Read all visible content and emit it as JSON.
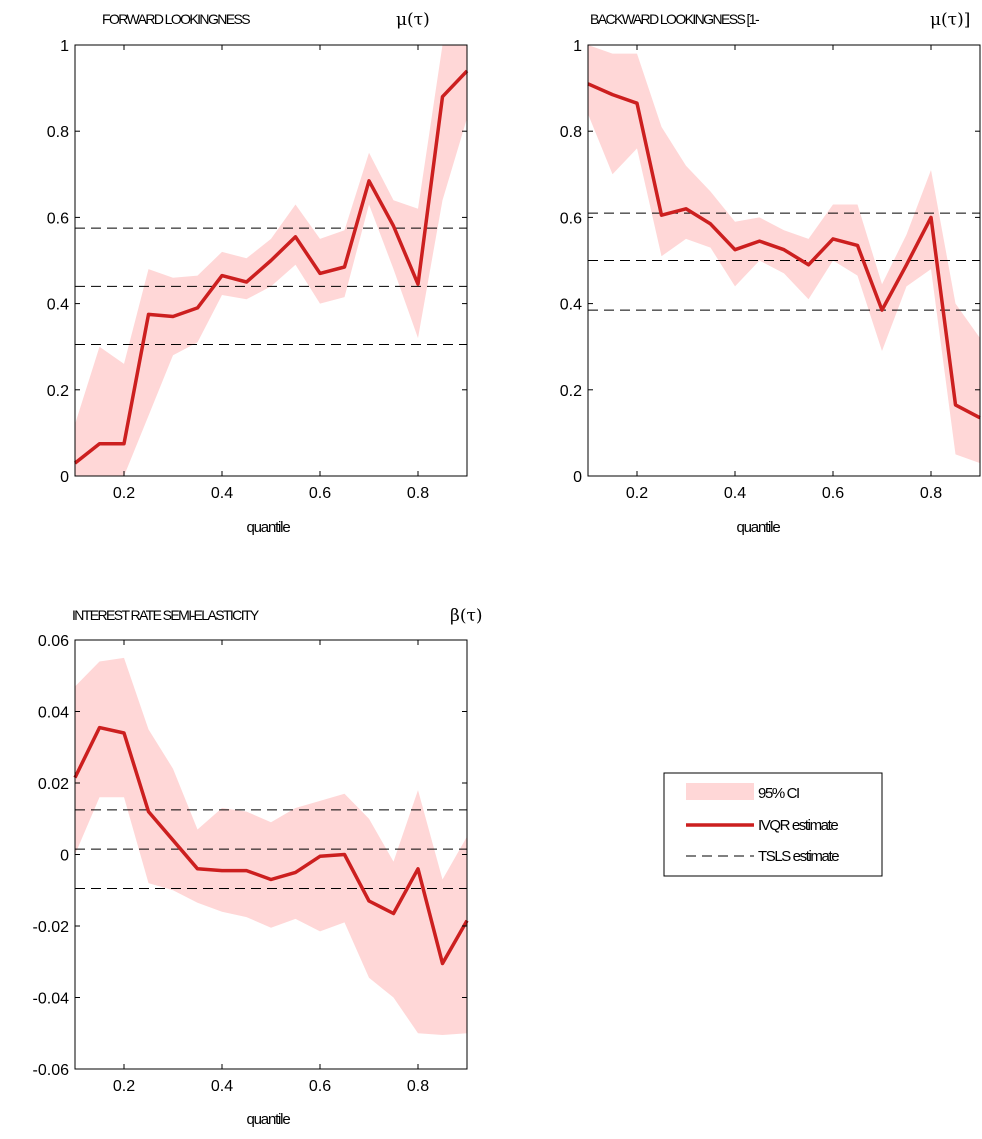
{
  "chart_data": [
    {
      "type": "line",
      "title": "FORWARD LOOKINGNESS",
      "symbol": "μ(τ)",
      "xlabel": "quantile",
      "xlim": [
        0.1,
        0.9
      ],
      "ylim": [
        0,
        1
      ],
      "xticks": [
        {
          "v": 0.2,
          "label": "0.2"
        },
        {
          "v": 0.4,
          "label": "0.4"
        },
        {
          "v": 0.6,
          "label": "0.6"
        },
        {
          "v": 0.8,
          "label": "0.8"
        }
      ],
      "yticks": [
        {
          "v": 0,
          "label": "0"
        },
        {
          "v": 0.2,
          "label": "0.2"
        },
        {
          "v": 0.4,
          "label": "0.4"
        },
        {
          "v": 0.6,
          "label": "0.6"
        },
        {
          "v": 0.8,
          "label": "0.8"
        },
        {
          "v": 1,
          "label": "1"
        }
      ],
      "x": [
        0.1,
        0.15,
        0.2,
        0.25,
        0.3,
        0.35,
        0.4,
        0.45,
        0.5,
        0.55,
        0.6,
        0.65,
        0.7,
        0.75,
        0.8,
        0.85,
        0.9
      ],
      "estimate": [
        0.03,
        0.075,
        0.075,
        0.375,
        0.37,
        0.39,
        0.465,
        0.45,
        0.5,
        0.555,
        0.47,
        0.485,
        0.685,
        0.58,
        0.445,
        0.88,
        0.94
      ],
      "ci_upper": [
        0.12,
        0.3,
        0.26,
        0.48,
        0.46,
        0.465,
        0.52,
        0.505,
        0.55,
        0.63,
        0.55,
        0.57,
        0.75,
        0.64,
        0.62,
        1.0,
        1.0
      ],
      "ci_lower": [
        0.0,
        0.0,
        0.0,
        0.14,
        0.28,
        0.31,
        0.42,
        0.41,
        0.44,
        0.49,
        0.4,
        0.415,
        0.63,
        0.48,
        0.32,
        0.64,
        0.83
      ],
      "tsls": [
        0.575,
        0.44,
        0.305
      ]
    },
    {
      "type": "line",
      "title": "BACKWARD LOOKINGNESS [1-",
      "symbol": "μ(τ)]",
      "xlabel": "quantile",
      "xlim": [
        0.1,
        0.9
      ],
      "ylim": [
        0,
        1
      ],
      "xticks": [
        {
          "v": 0.2,
          "label": "0.2"
        },
        {
          "v": 0.4,
          "label": "0.4"
        },
        {
          "v": 0.6,
          "label": "0.6"
        },
        {
          "v": 0.8,
          "label": "0.8"
        }
      ],
      "yticks": [
        {
          "v": 0,
          "label": "0"
        },
        {
          "v": 0.2,
          "label": "0.2"
        },
        {
          "v": 0.4,
          "label": "0.4"
        },
        {
          "v": 0.6,
          "label": "0.6"
        },
        {
          "v": 0.8,
          "label": "0.8"
        },
        {
          "v": 1,
          "label": "1"
        }
      ],
      "x": [
        0.1,
        0.15,
        0.2,
        0.25,
        0.3,
        0.35,
        0.4,
        0.45,
        0.5,
        0.55,
        0.6,
        0.65,
        0.7,
        0.75,
        0.8,
        0.85,
        0.9
      ],
      "estimate": [
        0.91,
        0.885,
        0.865,
        0.605,
        0.62,
        0.585,
        0.525,
        0.545,
        0.525,
        0.49,
        0.55,
        0.535,
        0.385,
        0.49,
        0.6,
        0.165,
        0.135
      ],
      "ci_upper": [
        1.0,
        0.98,
        0.98,
        0.81,
        0.72,
        0.66,
        0.59,
        0.6,
        0.57,
        0.55,
        0.63,
        0.63,
        0.445,
        0.56,
        0.71,
        0.4,
        0.32
      ],
      "ci_lower": [
        0.84,
        0.7,
        0.76,
        0.51,
        0.55,
        0.53,
        0.44,
        0.5,
        0.47,
        0.41,
        0.5,
        0.465,
        0.29,
        0.44,
        0.48,
        0.05,
        0.03
      ],
      "tsls": [
        0.61,
        0.5,
        0.385
      ]
    },
    {
      "type": "line",
      "title": "INTEREST RATE SEMI-ELASTICITY",
      "symbol": "β(τ)",
      "xlabel": "quantile",
      "xlim": [
        0.1,
        0.9
      ],
      "ylim": [
        -0.06,
        0.06
      ],
      "xticks": [
        {
          "v": 0.2,
          "label": "0.2"
        },
        {
          "v": 0.4,
          "label": "0.4"
        },
        {
          "v": 0.6,
          "label": "0.6"
        },
        {
          "v": 0.8,
          "label": "0.8"
        }
      ],
      "yticks": [
        {
          "v": -0.06,
          "label": "-0.06"
        },
        {
          "v": -0.04,
          "label": "-0.04"
        },
        {
          "v": -0.02,
          "label": "-0.02"
        },
        {
          "v": 0,
          "label": "0"
        },
        {
          "v": 0.02,
          "label": "0.02"
        },
        {
          "v": 0.04,
          "label": "0.04"
        },
        {
          "v": 0.06,
          "label": "0.06"
        }
      ],
      "x": [
        0.1,
        0.15,
        0.2,
        0.25,
        0.3,
        0.35,
        0.4,
        0.45,
        0.5,
        0.55,
        0.6,
        0.65,
        0.7,
        0.75,
        0.8,
        0.85,
        0.9
      ],
      "estimate": [
        0.0215,
        0.0355,
        0.034,
        0.012,
        0.004,
        -0.004,
        -0.0045,
        -0.0045,
        -0.007,
        -0.005,
        -0.0005,
        0.0,
        -0.013,
        -0.0165,
        -0.004,
        -0.0305,
        -0.0185
      ],
      "ci_upper": [
        0.047,
        0.054,
        0.055,
        0.035,
        0.024,
        0.007,
        0.013,
        0.012,
        0.009,
        0.013,
        0.015,
        0.017,
        0.01,
        -0.002,
        0.018,
        -0.007,
        0.005
      ],
      "ci_lower": [
        0.0,
        0.016,
        0.016,
        -0.008,
        -0.01,
        -0.0135,
        -0.016,
        -0.0175,
        -0.0205,
        -0.018,
        -0.0215,
        -0.019,
        -0.0345,
        -0.04,
        -0.05,
        -0.0505,
        -0.05
      ],
      "tsls": [
        0.0125,
        0.0015,
        -0.0095
      ]
    }
  ],
  "legend": {
    "ci_label": "95% CI",
    "estimate_label": "IVQR estimate",
    "tsls_label": "TSLS estimate"
  },
  "colors": {
    "ci_fill": "#ffd7d7",
    "estimate_line": "#cc1f1f",
    "tsls_line": "#000000",
    "axis": "#000000"
  }
}
